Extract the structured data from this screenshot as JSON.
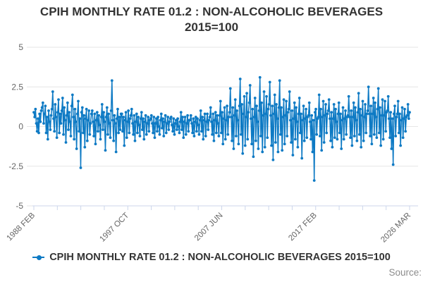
{
  "title": {
    "line1": "CPIH MONTHLY RATE 01.2 : NON-ALCOHOLIC BEVERAGES",
    "line2": "2015=100"
  },
  "legend": {
    "label": "CPIH MONTHLY RATE 01.2 : NON-ALCOHOLIC BEVERAGES 2015=100"
  },
  "source": {
    "label": "Source:"
  },
  "colors": {
    "series": "#0e7ac4",
    "grid": "#e6e6e6",
    "axis": "#ccd6eb",
    "title_text": "#333333",
    "axis_text": "#666666",
    "source_text": "#8c8c8c"
  },
  "chart_data": {
    "type": "line",
    "title": "CPIH MONTHLY RATE 01.2 : NON-ALCOHOLIC BEVERAGES 2015=100",
    "xlabel": "",
    "ylabel": "",
    "ylim": [
      -5,
      5
    ],
    "y_ticks": [
      5,
      2.5,
      0,
      -2.5,
      -5
    ],
    "y_tick_labels": [
      "5",
      "2.5",
      "0",
      "-2.5",
      "-5"
    ],
    "x_start": "1988 FEB",
    "x_end": "2026 MAR",
    "x_tick_labels": [
      "1988 FEB",
      "1997 OCT",
      "2007 JUN",
      "2017 FEB",
      "2026 MAR"
    ],
    "minor_ticks_between_labels": 3,
    "grid": true,
    "legend_position": "bottom",
    "marker": "circle",
    "frequency": "monthly",
    "values": [
      0.9,
      0.6,
      1.1,
      0.2,
      -0.3,
      0.5,
      -0.4,
      0.8,
      0.3,
      1.0,
      1.2,
      1.5,
      0.2,
      0.8,
      1.3,
      -0.4,
      0.6,
      -0.8,
      1.0,
      0.3,
      -0.2,
      0.7,
      1.1,
      2.2,
      0.5,
      -0.3,
      1.4,
      0.6,
      -0.7,
      0.9,
      1.7,
      -0.4,
      0.8,
      0.2,
      1.0,
      1.8,
      -0.5,
      1.2,
      0.4,
      -1.0,
      0.7,
      1.5,
      -0.2,
      0.9,
      0.3,
      -0.6,
      1.3,
      2.0,
      0.6,
      -0.8,
      1.1,
      0.3,
      -1.4,
      0.8,
      1.6,
      -0.3,
      0.5,
      -2.6,
      0.9,
      1.2,
      -0.4,
      0.7,
      -1.3,
      0.5,
      1.1,
      -0.9,
      0.4,
      1.0,
      -0.5,
      0.2,
      0.8,
      1.0,
      0.3,
      -0.6,
      0.8,
      -1.1,
      0.4,
      0.9,
      -0.3,
      0.7,
      0.1,
      -0.8,
      0.6,
      1.4,
      -0.2,
      0.9,
      0.3,
      -1.5,
      0.6,
      1.2,
      -0.5,
      0.8,
      0.2,
      -0.7,
      1.0,
      2.9,
      0.4,
      -0.9,
      0.7,
      0.2,
      -1.6,
      0.5,
      1.1,
      -0.4,
      0.6,
      -0.2,
      0.8,
      0.8,
      -0.3,
      0.6,
      -1.2,
      0.4,
      0.9,
      -0.7,
      0.3,
      1.0,
      -0.4,
      0.5,
      0.7,
      1.1,
      0.2,
      -0.5,
      0.7,
      -0.9,
      0.3,
      0.8,
      -0.4,
      0.6,
      0.1,
      -0.6,
      0.5,
      0.9,
      -0.2,
      0.5,
      -0.8,
      0.3,
      0.7,
      -0.5,
      0.2,
      0.6,
      -0.3,
      0.4,
      0.5,
      0.7,
      0.2,
      -0.4,
      0.6,
      -0.7,
      0.2,
      0.5,
      -0.3,
      0.6,
      0.0,
      -0.5,
      0.4,
      0.8,
      -0.1,
      0.5,
      -0.6,
      0.3,
      0.7,
      -0.4,
      0.2,
      0.6,
      -0.2,
      0.3,
      0.5,
      0.6,
      0.1,
      -0.3,
      0.5,
      -0.5,
      0.2,
      0.4,
      -0.2,
      0.5,
      0.0,
      -0.4,
      0.3,
      0.9,
      -0.2,
      0.6,
      -0.7,
      0.3,
      0.6,
      -0.5,
      0.2,
      0.7,
      -0.3,
      0.4,
      0.4,
      0.7,
      0.2,
      -0.4,
      0.5,
      -0.6,
      0.3,
      0.6,
      -0.3,
      0.5,
      0.1,
      -0.5,
      0.4,
      1.0,
      -0.3,
      0.6,
      -0.8,
      0.4,
      0.8,
      -0.6,
      0.3,
      0.8,
      -0.2,
      0.4,
      0.6,
      1.2,
      0.3,
      -0.5,
      0.8,
      -0.9,
      0.4,
      0.9,
      -0.4,
      0.7,
      0.2,
      -0.6,
      0.7,
      1.6,
      -0.4,
      0.9,
      -1.1,
      0.5,
      1.2,
      -0.8,
      0.4,
      1.3,
      -0.5,
      0.6,
      0.9,
      2.4,
      0.6,
      -0.9,
      1.2,
      -1.4,
      0.7,
      1.7,
      -0.6,
      1.0,
      0.4,
      -1.1,
      1.3,
      3.0,
      -0.5,
      1.4,
      -1.7,
      0.8,
      1.9,
      -1.2,
      0.6,
      2.1,
      -0.8,
      0.9,
      1.5,
      2.6,
      0.5,
      -1.1,
      1.1,
      -1.9,
      0.6,
      1.8,
      -0.9,
      1.3,
      0.3,
      -1.4,
      1.0,
      3.1,
      -0.6,
      1.5,
      -1.6,
      0.7,
      2.2,
      -1.3,
      0.8,
      1.9,
      -0.7,
      1.1,
      1.4,
      2.8,
      0.7,
      -1.2,
      1.3,
      -2.1,
      0.8,
      2.0,
      -1.0,
      1.4,
      0.5,
      -1.6,
      1.2,
      2.9,
      -0.5,
      1.2,
      -1.5,
      0.6,
      1.7,
      -1.1,
      0.7,
      1.6,
      -0.6,
      0.9,
      1.1,
      2.2,
      0.4,
      -1.0,
      1.0,
      -1.8,
      0.5,
      1.5,
      -0.8,
      1.2,
      0.3,
      -1.3,
      0.8,
      1.8,
      -0.4,
      0.8,
      -2.0,
      0.4,
      1.3,
      -0.9,
      0.5,
      1.1,
      -0.7,
      0.6,
      0.7,
      1.5,
      0.3,
      -0.8,
      0.7,
      -1.6,
      0.4,
      -3.4,
      0.9,
      1.1,
      -0.5,
      0.5,
      0.6,
      2.0,
      -0.6,
      1.1,
      -1.5,
      0.6,
      1.6,
      -1.0,
      0.7,
      1.4,
      -0.4,
      0.8,
      1.0,
      1.7,
      0.5,
      -0.9,
      0.9,
      -1.3,
      0.5,
      1.4,
      -0.7,
      1.1,
      0.3,
      -0.8,
      0.8,
      1.5,
      -0.4,
      0.8,
      -1.4,
      0.4,
      1.2,
      -0.8,
      0.5,
      1.0,
      -0.5,
      0.6,
      0.7,
      1.9,
      0.6,
      -0.7,
      1.0,
      -1.2,
      0.6,
      1.5,
      -0.6,
      1.2,
      0.4,
      -0.9,
      0.9,
      2.1,
      -0.5,
      1.1,
      -1.3,
      0.7,
      1.6,
      -0.9,
      0.6,
      1.4,
      -0.4,
      0.8,
      1.0,
      2.5,
      0.8,
      -0.6,
      1.3,
      -1.1,
      0.8,
      1.8,
      -0.5,
      1.5,
      0.6,
      -0.7,
      1.1,
      2.4,
      -0.4,
      1.2,
      -1.2,
      0.7,
      1.7,
      -0.8,
      0.7,
      1.6,
      -0.3,
      0.9,
      1.0,
      1.9,
      0.5,
      -0.7,
      0.9,
      -1.4,
      0.5,
      -2.4,
      0.8,
      1.3,
      -0.6,
      0.6,
      0.8,
      1.6,
      -0.4,
      0.8,
      -1.2,
      0.4,
      1.2,
      -0.7,
      0.5,
      1.1,
      -0.3,
      0.6,
      0.7,
      1.4,
      0.5,
      0.9
    ]
  }
}
